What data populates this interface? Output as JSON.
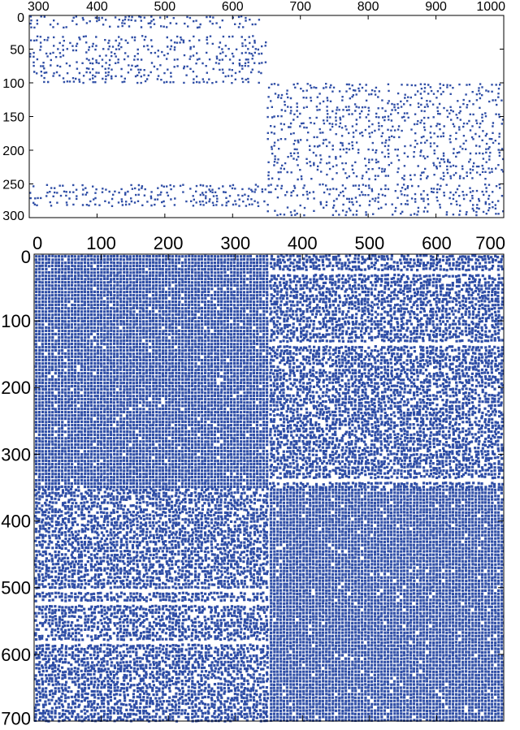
{
  "chart_data": [
    {
      "type": "scatter",
      "subtype": "sparsity-pattern",
      "title": "",
      "xlabel": "",
      "ylabel": "",
      "xlim": [
        300,
        1000
      ],
      "ylim": [
        300,
        0
      ],
      "x_ticks": [
        300,
        400,
        500,
        600,
        700,
        800,
        900,
        1000
      ],
      "y_ticks": [
        0,
        50,
        100,
        150,
        200,
        250,
        300
      ],
      "x_axis_position": "top",
      "y_axis_reversed": true,
      "grid": false,
      "marker_color": "#2f4ea6",
      "blocks": [
        {
          "x": [
            300,
            650
          ],
          "y": [
            0,
            100
          ],
          "density": 0.35
        },
        {
          "x": [
            300,
            650
          ],
          "y": [
            250,
            300
          ],
          "density": 0.42
        },
        {
          "x": [
            650,
            1000
          ],
          "y": [
            100,
            300
          ],
          "density": 0.33
        }
      ]
    },
    {
      "type": "scatter",
      "subtype": "sparsity-pattern",
      "title": "",
      "xlabel": "",
      "ylabel": "",
      "xlim": [
        0,
        700
      ],
      "ylim": [
        700,
        0
      ],
      "x_ticks": [
        0,
        100,
        200,
        300,
        400,
        500,
        600,
        700
      ],
      "y_ticks": [
        0,
        100,
        200,
        300,
        400,
        500,
        600,
        700
      ],
      "x_axis_position": "top",
      "y_axis_reversed": true,
      "grid": false,
      "marker_color": "#2f4ea6",
      "blocks": [
        {
          "x": [
            0,
            350
          ],
          "y": [
            0,
            350
          ],
          "density": 0.97
        },
        {
          "x": [
            350,
            700
          ],
          "y": [
            0,
            350
          ],
          "density": 0.85
        },
        {
          "x": [
            0,
            350
          ],
          "y": [
            350,
            700
          ],
          "density": 0.85
        },
        {
          "x": [
            350,
            700
          ],
          "y": [
            350,
            700
          ],
          "density": 0.97
        }
      ]
    }
  ]
}
